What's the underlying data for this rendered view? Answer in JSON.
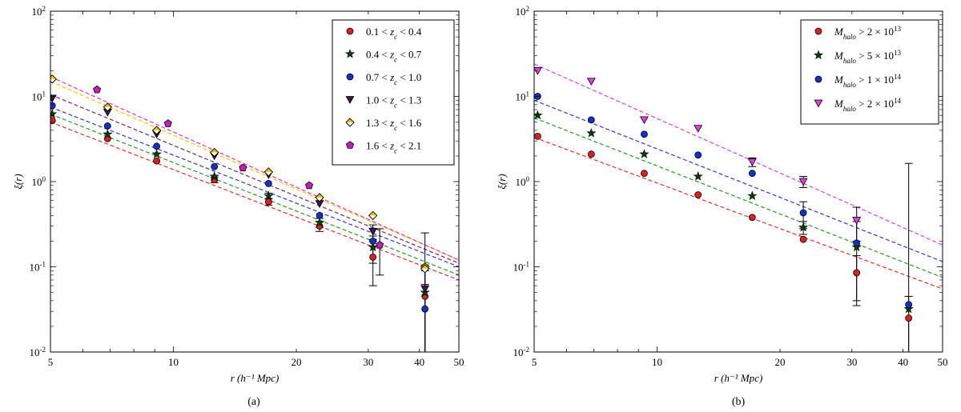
{
  "figure": {
    "panel_a_caption": "(a)",
    "panel_b_caption": "(b)"
  },
  "chart_data": [
    {
      "type": "scatter",
      "panel": "(a)",
      "xscale": "log",
      "yscale": "log",
      "xlim": [
        5,
        50
      ],
      "ylim": [
        0.01,
        100
      ],
      "xlabel": "r (h⁻¹ Mpc)",
      "ylabel": "ξ(r)",
      "xticks": [
        "5",
        "10",
        "20",
        "30",
        "40",
        "50"
      ],
      "yticks": [
        "10-2",
        "10-1",
        "100",
        "101",
        "102"
      ],
      "legend_position": "top-right",
      "series": [
        {
          "name": "0.1 < zc < 0.4",
          "marker": "circle",
          "color": "#d62222",
          "x": [
            5.05,
            6.9,
            9.1,
            12.6,
            17.1,
            22.8,
            30.8,
            41.3
          ],
          "y": [
            5.2,
            3.2,
            1.75,
            1.05,
            0.58,
            0.3,
            0.13,
            0.045
          ],
          "err": [
            0,
            0,
            0,
            0.08,
            0.05,
            0.04,
            0.07,
            0.045
          ],
          "fit": [
            5.0,
            0.07
          ],
          "fit_color": "#e03030"
        },
        {
          "name": "0.4 < zc < 0.7",
          "marker": "star",
          "color": "#0a3d0a",
          "x": [
            5.05,
            6.9,
            9.1,
            12.6,
            17.1,
            22.8,
            30.8,
            41.3
          ],
          "y": [
            6.2,
            3.6,
            2.1,
            1.15,
            0.68,
            0.33,
            0.17,
            0.05
          ],
          "err": [
            0,
            0,
            0,
            0,
            0.05,
            0.04,
            0.06,
            0.05
          ],
          "fit": [
            6.2,
            0.08
          ],
          "fit_color": "#2a9a2a"
        },
        {
          "name": "0.7 < zc < 1.0",
          "marker": "circle",
          "color": "#1630c8",
          "x": [
            5.05,
            6.9,
            9.1,
            12.6,
            17.1,
            22.8,
            30.8,
            41.3
          ],
          "y": [
            7.8,
            4.5,
            2.6,
            1.5,
            0.95,
            0.4,
            0.2,
            0.032
          ],
          "err": [
            0,
            0,
            0,
            0,
            0,
            0,
            0,
            0.03
          ],
          "fit": [
            7.5,
            0.1
          ],
          "fit_color": "#2a3adc"
        },
        {
          "name": "1.0 < zc < 1.3",
          "marker": "triangle-down",
          "color": "#3a1850",
          "x": [
            5.05,
            6.9,
            9.1,
            12.6,
            17.1,
            22.8,
            30.8,
            41.3
          ],
          "y": [
            9.5,
            6.5,
            3.6,
            2.0,
            1.2,
            0.55,
            0.26,
            0.055
          ],
          "err": [
            0,
            0,
            0,
            0,
            0,
            0,
            0.05,
            0.05
          ],
          "fit": [
            10.5,
            0.11
          ],
          "fit_color": "#6a2a6a"
        },
        {
          "name": "1.3 < zc < 1.6",
          "marker": "diamond-half",
          "color": "#f0c000",
          "x": [
            5.05,
            6.9,
            9.1,
            12.6,
            17.1,
            22.8,
            30.8,
            41.3
          ],
          "y": [
            16.0,
            7.5,
            4.0,
            2.2,
            1.3,
            0.65,
            0.4,
            0.1
          ],
          "err": [
            0,
            0,
            0,
            0,
            0,
            0,
            0,
            0.15
          ],
          "fit": [
            15.0,
            0.12
          ],
          "fit_color": "#f0c800"
        },
        {
          "name": "1.6 < zc < 2.1",
          "marker": "pentagon",
          "color": "#c020b8",
          "x": [
            6.5,
            9.7,
            14.8,
            21.5,
            32.0
          ],
          "y": [
            12.0,
            4.8,
            1.45,
            0.9,
            0.18
          ],
          "err": [
            0,
            0,
            0,
            0,
            0.1
          ],
          "fit": [
            17.0,
            0.12
          ],
          "fit_color": "#e030e0"
        }
      ],
      "extra_points": [
        {
          "x": 41.3,
          "y": 0.095,
          "marker": "diamond-half",
          "color": "#f0c000"
        }
      ]
    },
    {
      "type": "scatter",
      "panel": "(b)",
      "xscale": "log",
      "yscale": "log",
      "xlim": [
        5,
        50
      ],
      "ylim": [
        0.01,
        100
      ],
      "xlabel": "r (h⁻¹ Mpc)",
      "ylabel": "ξ(r)",
      "xticks": [
        "5",
        "10",
        "20",
        "30",
        "40",
        "50"
      ],
      "yticks": [
        "10-2",
        "10-1",
        "100",
        "101",
        "102"
      ],
      "legend_position": "top-right",
      "series": [
        {
          "name": "Mhalo > 2 × 1013",
          "marker": "circle",
          "color": "#d62222",
          "x": [
            5.1,
            6.9,
            9.3,
            12.6,
            17.1,
            22.8,
            30.8,
            41.3
          ],
          "y": [
            3.4,
            2.1,
            1.25,
            0.7,
            0.38,
            0.21,
            0.085,
            0.025
          ],
          "err": [
            0,
            0,
            0,
            0,
            0,
            0,
            0.05,
            0.02
          ],
          "fit": [
            3.3,
            0.055
          ],
          "fit_color": "#e03030"
        },
        {
          "name": "Mhalo > 5 × 1013",
          "marker": "star",
          "color": "#0a3d0a",
          "x": [
            5.1,
            6.9,
            9.3,
            12.6,
            17.1,
            22.8,
            30.8,
            41.3
          ],
          "y": [
            6.0,
            3.7,
            2.1,
            1.15,
            0.68,
            0.29,
            0.17,
            0.032
          ],
          "err": [
            0,
            0,
            0,
            0,
            0,
            0.05,
            0,
            0
          ],
          "fit": [
            5.6,
            0.075
          ],
          "fit_color": "#2a9a2a"
        },
        {
          "name": "Mhalo > 1 × 1014",
          "marker": "circle",
          "color": "#1630c8",
          "x": [
            5.1,
            6.9,
            9.3,
            12.6,
            17.1,
            22.8,
            30.8,
            41.3
          ],
          "y": [
            10.0,
            5.3,
            3.6,
            2.05,
            1.25,
            0.43,
            0.19,
            0.036
          ],
          "err": [
            0,
            0,
            0,
            0,
            0,
            0.15,
            0.15,
            1.6
          ],
          "fit": [
            9.0,
            0.115
          ],
          "fit_color": "#2a3adc"
        },
        {
          "name": "Mhalo > 2 × 1014",
          "marker": "triangle-down",
          "color": "#e040e0",
          "x": [
            5.1,
            6.9,
            9.3,
            12.6,
            17.1,
            22.8,
            30.8
          ],
          "y": [
            20.0,
            15.0,
            5.3,
            4.2,
            1.7,
            1.0,
            0.35
          ],
          "err": [
            0,
            0,
            0,
            0,
            0.2,
            0.15,
            0.15
          ],
          "fit": [
            24.0,
            0.18
          ],
          "fit_color": "#e040e0"
        }
      ]
    }
  ]
}
